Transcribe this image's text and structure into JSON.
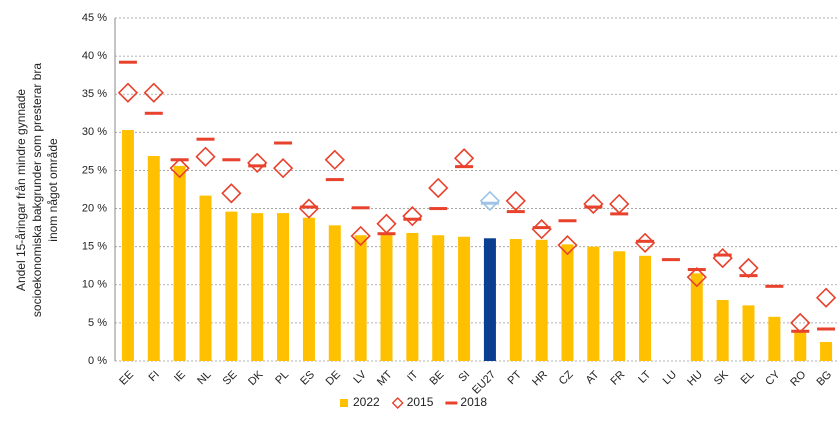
{
  "chart_data": {
    "type": "bar",
    "ylabel": [
      "Andel 15-åringar från mindre gynnade",
      "socioekonomiska bakgrunder som presterar bra",
      "inom något område"
    ],
    "categories": [
      "EE",
      "FI",
      "IE",
      "NL",
      "SE",
      "DK",
      "PL",
      "ES",
      "DE",
      "LV",
      "MT",
      "IT",
      "BE",
      "SI",
      "EU27",
      "PT",
      "HR",
      "CZ",
      "AT",
      "FR",
      "LT",
      "LU",
      "HU",
      "SK",
      "EL",
      "CY",
      "RO",
      "BG"
    ],
    "series": [
      {
        "name": "2022",
        "kind": "bar",
        "color": "#FFC000",
        "highlight_color": "#0B3D91",
        "values": [
          30.3,
          26.9,
          25.6,
          21.7,
          19.6,
          19.4,
          19.4,
          18.8,
          17.8,
          16.5,
          16.8,
          16.8,
          16.5,
          16.3,
          16.1,
          16.0,
          15.9,
          15.3,
          15.0,
          14.4,
          13.8,
          null,
          11.5,
          8.0,
          7.3,
          5.8,
          4.0,
          2.5
        ]
      },
      {
        "name": "2015",
        "kind": "diamond",
        "color": "#E8412C",
        "highlight_color": "#9DC3E6",
        "values": [
          35.2,
          35.2,
          25.3,
          26.8,
          22.0,
          26.0,
          25.3,
          20.0,
          26.4,
          16.4,
          18.0,
          19.0,
          22.7,
          26.6,
          21.0,
          21.0,
          17.3,
          15.2,
          20.6,
          20.6,
          15.5,
          null,
          11.0,
          13.5,
          12.2,
          null,
          5.0,
          8.3
        ]
      },
      {
        "name": "2018",
        "kind": "dash",
        "color": "#E8412C",
        "highlight_color": "#9DC3E6",
        "values": [
          39.2,
          32.5,
          26.4,
          29.1,
          26.4,
          25.6,
          28.6,
          20.2,
          23.8,
          20.1,
          16.7,
          18.6,
          20.0,
          25.5,
          20.7,
          19.6,
          17.5,
          18.4,
          20.2,
          19.3,
          15.7,
          13.3,
          12.0,
          13.9,
          11.2,
          9.8,
          3.9,
          4.2
        ]
      }
    ],
    "highlight": 14,
    "ylim": [
      0,
      45
    ],
    "yticks": [
      {
        "value": 0,
        "label": "0 %"
      },
      {
        "value": 5,
        "label": "5 %"
      },
      {
        "value": 10,
        "label": "10 %"
      },
      {
        "value": 15,
        "label": "15 %"
      },
      {
        "value": 20,
        "label": "20 %"
      },
      {
        "value": 25,
        "label": "25 %"
      },
      {
        "value": 30,
        "label": "30 %"
      },
      {
        "value": 35,
        "label": "35 %"
      },
      {
        "value": 40,
        "label": "40 %"
      },
      {
        "value": 45,
        "label": "45 %"
      }
    ],
    "grid": true,
    "legend": "bottom"
  }
}
